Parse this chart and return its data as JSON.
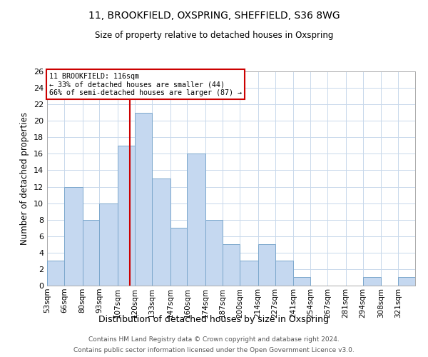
{
  "title": "11, BROOKFIELD, OXSPRING, SHEFFIELD, S36 8WG",
  "subtitle": "Size of property relative to detached houses in Oxspring",
  "xlabel": "Distribution of detached houses by size in Oxspring",
  "ylabel": "Number of detached properties",
  "bar_labels": [
    "53sqm",
    "66sqm",
    "80sqm",
    "93sqm",
    "107sqm",
    "120sqm",
    "133sqm",
    "147sqm",
    "160sqm",
    "174sqm",
    "187sqm",
    "200sqm",
    "214sqm",
    "227sqm",
    "241sqm",
    "254sqm",
    "267sqm",
    "281sqm",
    "294sqm",
    "308sqm",
    "321sqm"
  ],
  "bar_values": [
    3,
    12,
    8,
    10,
    17,
    21,
    13,
    7,
    16,
    8,
    5,
    3,
    5,
    3,
    1,
    0,
    0,
    0,
    1,
    0,
    1
  ],
  "bin_edges": [
    53,
    66,
    80,
    93,
    107,
    120,
    133,
    147,
    160,
    174,
    187,
    200,
    214,
    227,
    241,
    254,
    267,
    281,
    294,
    308,
    321,
    334
  ],
  "bar_color": "#c5d8f0",
  "bar_edgecolor": "#7ba7cc",
  "vline_x": 116,
  "vline_color": "#cc0000",
  "annotation_title": "11 BROOKFIELD: 116sqm",
  "annotation_line1": "← 33% of detached houses are smaller (44)",
  "annotation_line2": "66% of semi-detached houses are larger (87) →",
  "annotation_box_edgecolor": "#cc0000",
  "ylim": [
    0,
    26
  ],
  "yticks": [
    0,
    2,
    4,
    6,
    8,
    10,
    12,
    14,
    16,
    18,
    20,
    22,
    24,
    26
  ],
  "footer_line1": "Contains HM Land Registry data © Crown copyright and database right 2024.",
  "footer_line2": "Contains public sector information licensed under the Open Government Licence v3.0.",
  "background_color": "#ffffff",
  "grid_color": "#c8d8eb"
}
